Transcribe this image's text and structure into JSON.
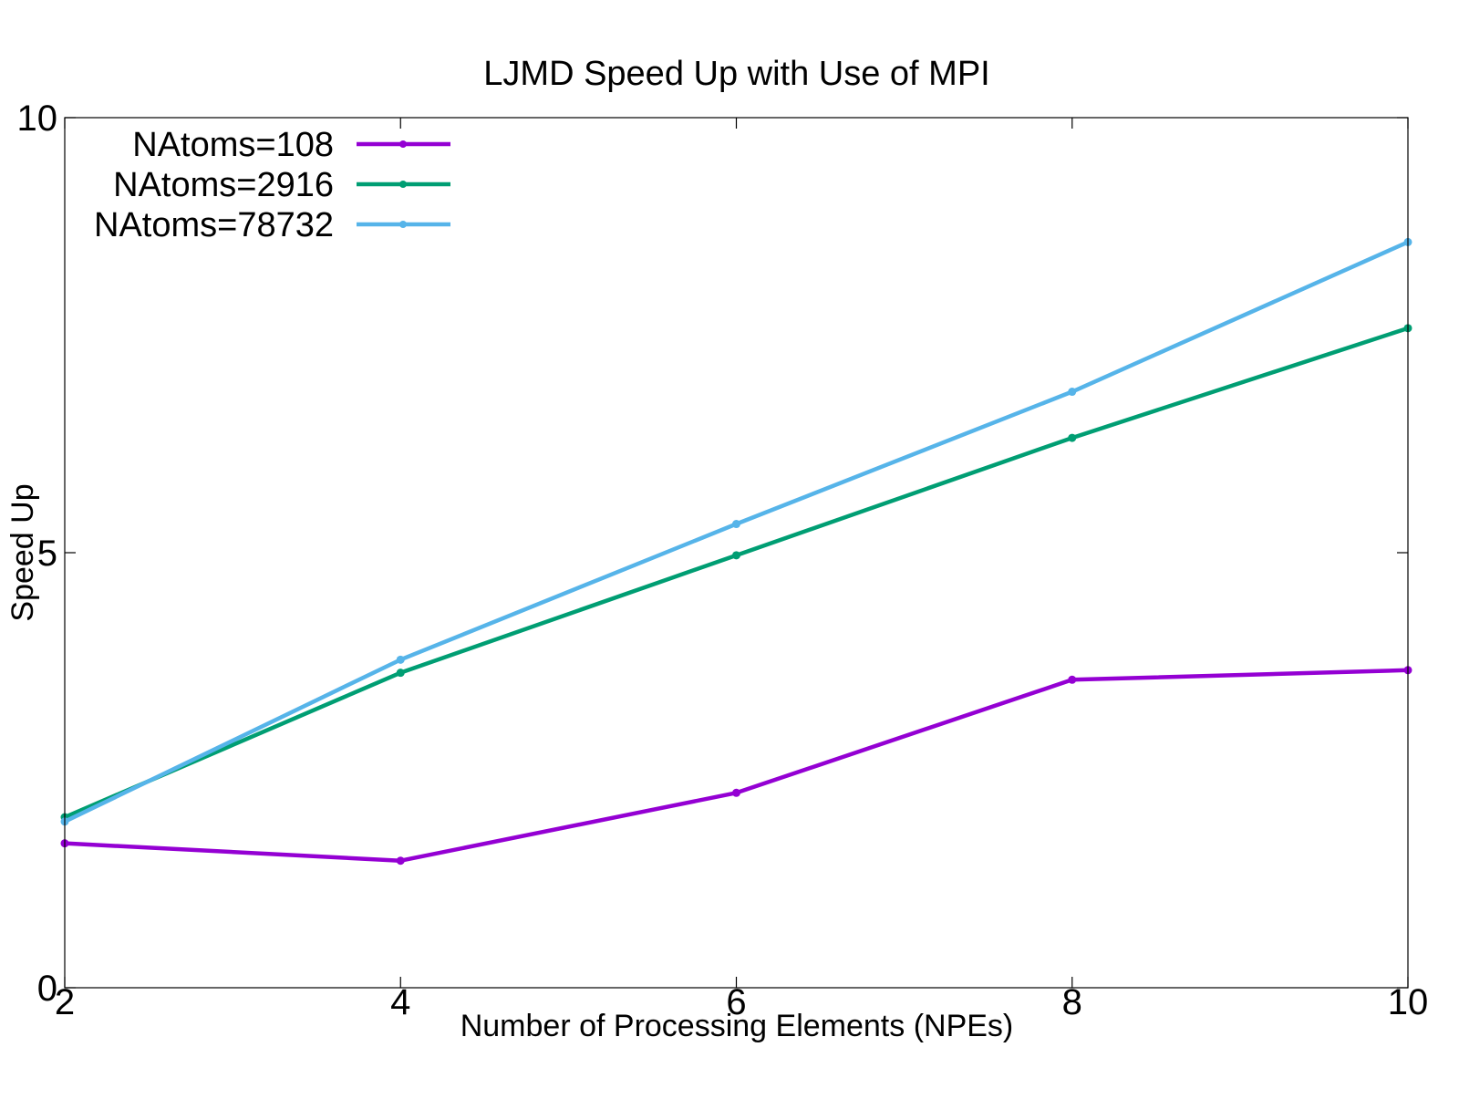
{
  "chart_data": {
    "type": "line",
    "title": "LJMD Speed Up with Use of MPI",
    "xlabel": "Number of Processing Elements (NPEs)",
    "ylabel": "Speed Up",
    "x": [
      2,
      4,
      6,
      8,
      10
    ],
    "xlim": [
      2,
      10
    ],
    "ylim": [
      0,
      10
    ],
    "xticks": [
      2,
      4,
      6,
      8,
      10
    ],
    "yticks": [
      0,
      5,
      10
    ],
    "grid": false,
    "legend_position": "top-left",
    "series": [
      {
        "name": "NAtoms=108",
        "color": "#9400d3",
        "values": [
          1.66,
          1.46,
          2.24,
          3.54,
          3.65
        ]
      },
      {
        "name": "NAtoms=2916",
        "color": "#009e73",
        "values": [
          1.96,
          3.62,
          4.97,
          6.32,
          7.58
        ]
      },
      {
        "name": "NAtoms=78732",
        "color": "#56b4e9",
        "values": [
          1.91,
          3.77,
          5.33,
          6.85,
          8.57
        ]
      }
    ]
  }
}
